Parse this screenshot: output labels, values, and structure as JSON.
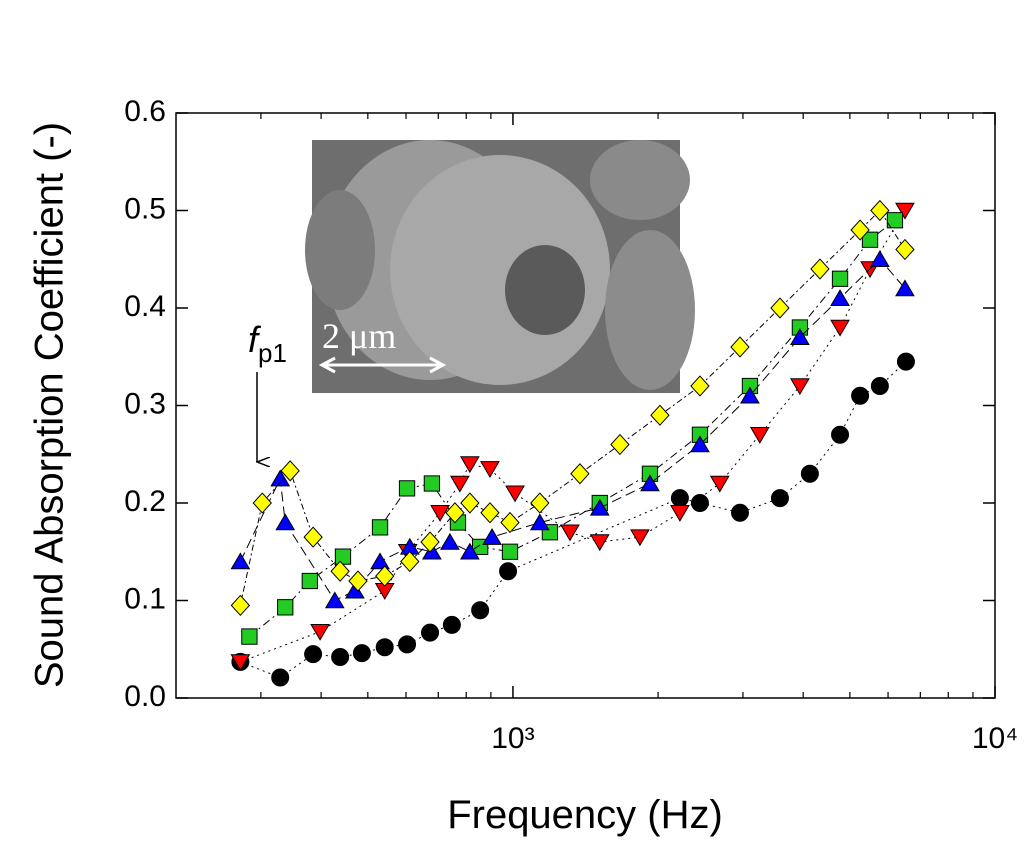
{
  "chart_data": {
    "type": "scatter",
    "xlabel": "Frequency (Hz)",
    "ylabel": "Sound Absorption Coefficient (-)",
    "xscale": "log",
    "xlim": [
      200,
      10000
    ],
    "xticks": [
      {
        "value": 1000,
        "label": "10³"
      },
      {
        "value": 10000,
        "label": "10⁴"
      }
    ],
    "xminorticks": [
      300,
      400,
      500,
      600,
      700,
      800,
      900,
      2000,
      3000,
      4000,
      5000,
      6000,
      7000,
      8000,
      9000
    ],
    "ylim": [
      0,
      0.6
    ],
    "yticks": [
      {
        "value": 0,
        "label": "0.0"
      },
      0.1,
      0.2,
      0.3,
      0.4,
      0.5,
      0.6
    ],
    "annotation": {
      "text": "f",
      "subscript": "p1"
    },
    "inset_label": "2 μm",
    "series": [
      {
        "marker": "circle",
        "color": "#000000",
        "dash": "2 4",
        "x": [
          272,
          329,
          385,
          438,
          486,
          542,
          603,
          673,
          747,
          855,
          977,
          2220,
          2443,
          2958,
          3580,
          4130,
          4770,
          5250,
          5770,
          6535
        ],
        "values": [
          0.037,
          0.021,
          0.045,
          0.042,
          0.046,
          0.052,
          0.055,
          0.067,
          0.075,
          0.09,
          0.13,
          0.205,
          0.2,
          0.19,
          0.205,
          0.23,
          0.27,
          0.31,
          0.32,
          0.345
        ]
      },
      {
        "marker": "triangle-down",
        "color": "#ff0000",
        "dash": "2 4",
        "x": [
          272,
          398,
          542,
          605,
          706,
          776,
          814,
          896,
          1010,
          1313,
          1514,
          1834,
          2220,
          2686,
          3252,
          3938,
          4770,
          5505,
          6504
        ],
        "values": [
          0.037,
          0.068,
          0.11,
          0.15,
          0.19,
          0.22,
          0.24,
          0.235,
          0.21,
          0.17,
          0.16,
          0.165,
          0.19,
          0.22,
          0.27,
          0.32,
          0.38,
          0.44,
          0.5
        ]
      },
      {
        "marker": "square",
        "color": "#22cc22",
        "dash": "8 4 2 4",
        "x": [
          284,
          337,
          379,
          444,
          530,
          603,
          679,
          769,
          855,
          986,
          1193,
          1514,
          1924,
          2443,
          3102,
          3938,
          4770,
          5505,
          6200
        ],
        "values": [
          0.063,
          0.093,
          0.12,
          0.145,
          0.175,
          0.215,
          0.22,
          0.18,
          0.155,
          0.15,
          0.17,
          0.2,
          0.23,
          0.27,
          0.32,
          0.38,
          0.43,
          0.47,
          0.49
        ]
      },
      {
        "marker": "triangle-up",
        "color": "#0000ff",
        "dash": "10 5",
        "x": [
          272,
          329,
          337,
          427,
          470,
          530,
          611,
          679,
          740,
          814,
          905,
          1137,
          1514,
          1924,
          2443,
          3102,
          3938,
          4770,
          5770,
          6504
        ],
        "values": [
          0.14,
          0.225,
          0.18,
          0.1,
          0.11,
          0.14,
          0.155,
          0.15,
          0.16,
          0.15,
          0.165,
          0.18,
          0.195,
          0.22,
          0.26,
          0.31,
          0.37,
          0.41,
          0.45,
          0.42
        ]
      },
      {
        "marker": "diamond",
        "color": "#ffff00",
        "dash": "6 3 2 3",
        "x": [
          272,
          302,
          345,
          385,
          438,
          477,
          542,
          611,
          673,
          758,
          814,
          896,
          986,
          1137,
          1377,
          1667,
          2018,
          2443,
          2958,
          3580,
          4334,
          5250,
          5770,
          6504
        ],
        "values": [
          0.095,
          0.2,
          0.233,
          0.165,
          0.13,
          0.12,
          0.125,
          0.14,
          0.16,
          0.19,
          0.2,
          0.19,
          0.18,
          0.2,
          0.23,
          0.26,
          0.29,
          0.32,
          0.36,
          0.4,
          0.44,
          0.48,
          0.5,
          0.46
        ]
      }
    ]
  }
}
